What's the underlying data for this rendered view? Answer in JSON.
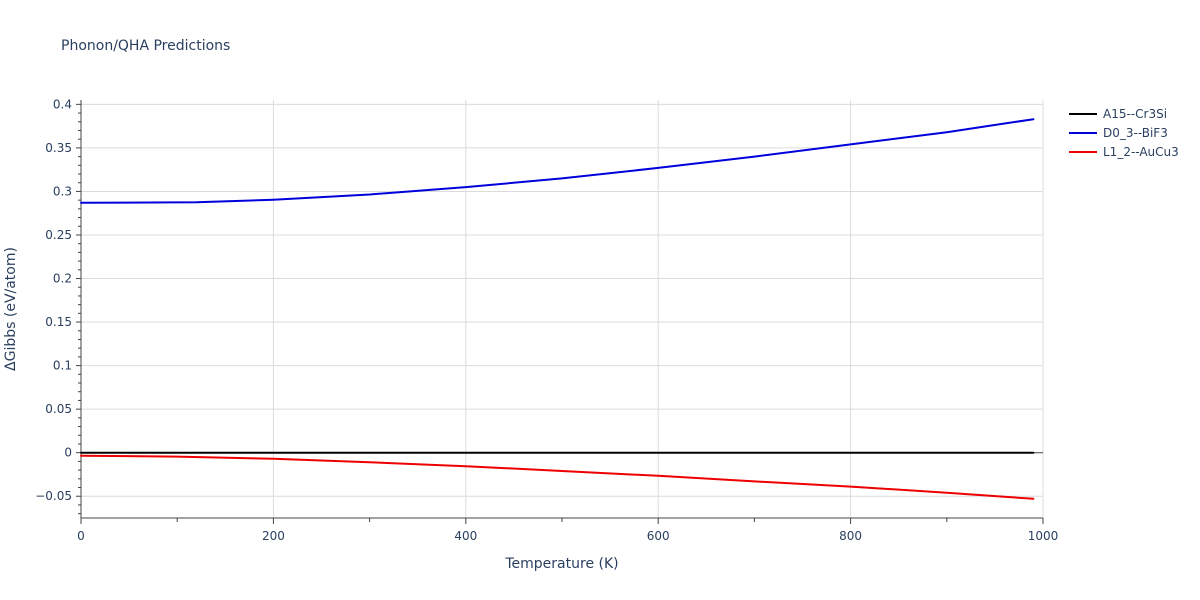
{
  "chart_data": {
    "type": "line",
    "title": "Phonon/QHA Predictions",
    "xlabel": "Temperature (K)",
    "ylabel": "ΔGibbs (eV/atom)",
    "xlim": [
      0,
      1000
    ],
    "ylim": [
      -0.075,
      0.405
    ],
    "xticks": [
      0,
      200,
      400,
      600,
      800,
      1000
    ],
    "xtick_labels": [
      "0",
      "200",
      "400",
      "600",
      "800",
      "1000"
    ],
    "yticks": [
      -0.05,
      0,
      0.05,
      0.1,
      0.15,
      0.2,
      0.25,
      0.3,
      0.35,
      0.4
    ],
    "ytick_labels": [
      "−0.05",
      "0",
      "0.05",
      "0.1",
      "0.15",
      "0.2",
      "0.25",
      "0.3",
      "0.35",
      "0.4"
    ],
    "grid": true,
    "legend_position": "top-right",
    "series": [
      {
        "name": "A15--Cr3Si",
        "color": "#000000",
        "x": [
          0,
          990
        ],
        "y": [
          0,
          0
        ]
      },
      {
        "name": "D0_3--BiF3",
        "color": "#0000dd",
        "x": [
          0,
          120,
          200,
          300,
          400,
          500,
          600,
          700,
          800,
          900,
          990
        ],
        "y": [
          0.287,
          0.2875,
          0.2905,
          0.2965,
          0.305,
          0.315,
          0.327,
          0.34,
          0.354,
          0.368,
          0.383
        ]
      },
      {
        "name": "L1_2--AuCu3",
        "color": "#ee0000",
        "x": [
          0,
          100,
          200,
          300,
          400,
          500,
          600,
          700,
          800,
          900,
          990
        ],
        "y": [
          -0.0035,
          -0.0045,
          -0.007,
          -0.011,
          -0.0155,
          -0.021,
          -0.0265,
          -0.033,
          -0.039,
          -0.046,
          -0.053
        ]
      }
    ]
  }
}
